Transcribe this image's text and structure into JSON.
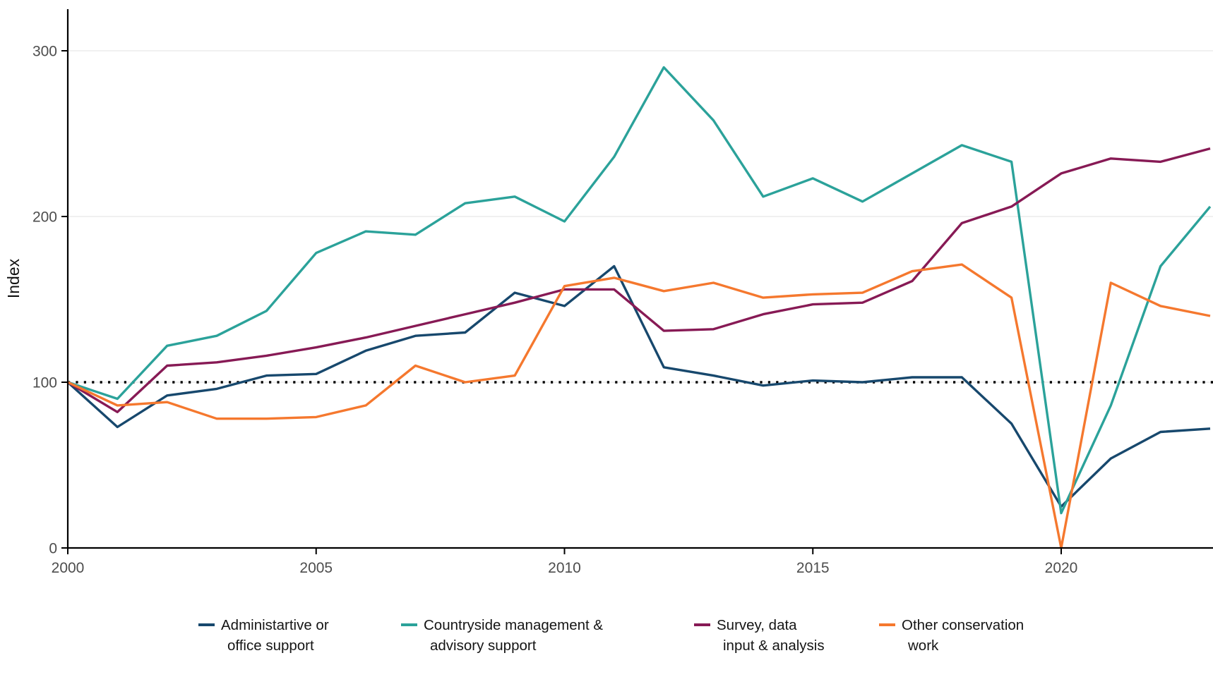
{
  "chart_data": {
    "type": "line",
    "title": "",
    "xlabel": "",
    "ylabel": "Index",
    "x": [
      2000,
      2001,
      2002,
      2003,
      2004,
      2005,
      2006,
      2007,
      2008,
      2009,
      2010,
      2011,
      2012,
      2013,
      2014,
      2015,
      2016,
      2017,
      2018,
      2019,
      2020,
      2021,
      2022,
      2023
    ],
    "x_ticks": [
      2000,
      2005,
      2010,
      2015,
      2020
    ],
    "y_ticks": [
      0,
      100,
      200,
      300
    ],
    "xlim": [
      2000,
      2023.05
    ],
    "ylim": [
      0,
      320
    ],
    "grid": "horizontal-major",
    "reference_line": {
      "value": 100,
      "style": "dotted",
      "color": "#000000"
    },
    "legend_position": "bottom",
    "series": [
      {
        "name": "Administartive or office support",
        "label_lines": [
          "Administartive or",
          "office support"
        ],
        "color": "#17486D",
        "values": [
          100,
          73,
          92,
          96,
          104,
          105,
          119,
          128,
          130,
          154,
          146,
          170,
          109,
          104,
          98,
          101,
          100,
          103,
          103,
          75,
          25,
          54,
          70,
          72
        ]
      },
      {
        "name": "Countryside management & advisory support",
        "label_lines": [
          "Countryside management &",
          "advisory support"
        ],
        "color": "#2BA29A",
        "values": [
          100,
          90,
          122,
          128,
          143,
          178,
          191,
          189,
          208,
          212,
          197,
          236,
          290,
          258,
          212,
          223,
          209,
          226,
          243,
          233,
          21,
          86,
          170,
          206
        ]
      },
      {
        "name": "Survey, data input & analysis",
        "label_lines": [
          "Survey, data",
          "input & analysis"
        ],
        "color": "#871A55",
        "values": [
          100,
          82,
          110,
          112,
          116,
          121,
          127,
          134,
          141,
          148,
          156,
          156,
          131,
          132,
          141,
          147,
          148,
          161,
          196,
          206,
          226,
          235,
          233,
          241
        ]
      },
      {
        "name": "Other conservation work",
        "label_lines": [
          "Other conservation",
          "work"
        ],
        "color": "#F5782E",
        "values": [
          100,
          86,
          88,
          78,
          78,
          79,
          86,
          110,
          100,
          104,
          158,
          163,
          155,
          160,
          151,
          153,
          154,
          167,
          171,
          151,
          0,
          160,
          146,
          140
        ]
      }
    ],
    "axis_tick_labels": {
      "x": [
        "2000",
        "2005",
        "2010",
        "2015",
        "2020"
      ],
      "y": [
        "0",
        "100",
        "200",
        "300"
      ]
    },
    "colors": {
      "axis_line": "#000000",
      "tick_label": "#4d4d4d",
      "gridline": "#ececec",
      "background": "#ffffff"
    }
  }
}
